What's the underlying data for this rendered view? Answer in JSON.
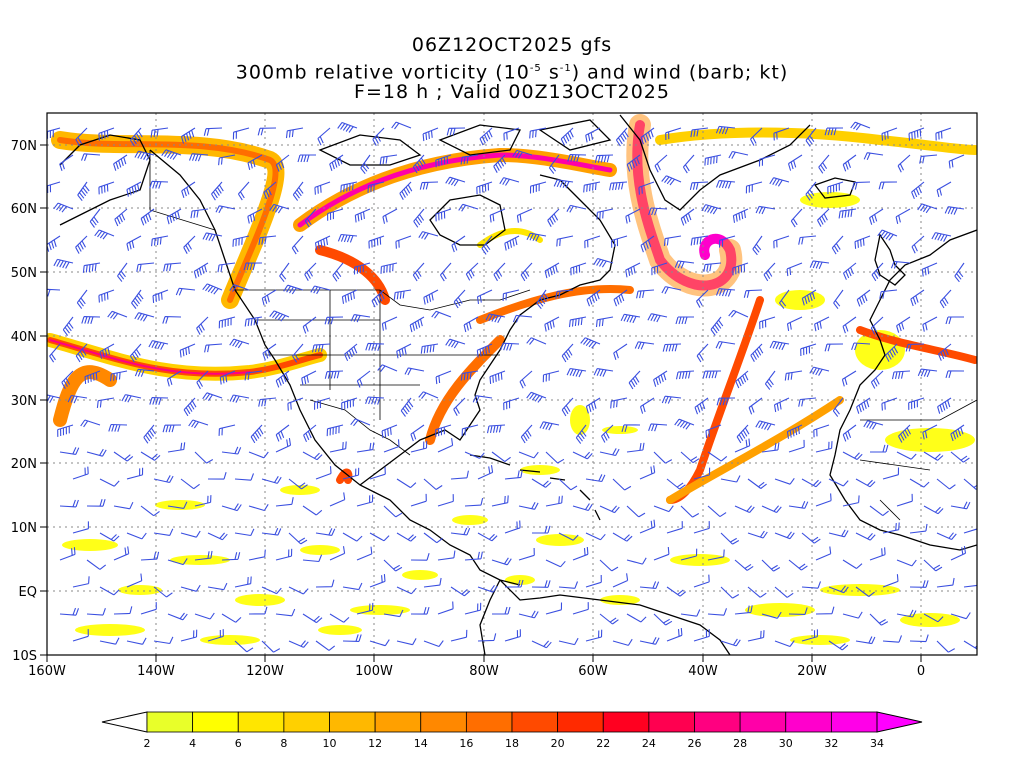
{
  "title": {
    "line1": "06Z12OCT2025 gfs",
    "line2_pre": "300mb relative vorticity (10",
    "line2_exp1": "-5",
    "line2_mid": " s",
    "line2_exp2": "-1",
    "line2_post": ") and wind (barb; kt)",
    "line3": "F=18 h ; Valid 00Z13OCT2025"
  },
  "map": {
    "lon_range": [
      -160,
      10
    ],
    "lat_range": [
      -10,
      75
    ],
    "lon_ticks": [
      "160W",
      "140W",
      "120W",
      "100W",
      "80W",
      "60W",
      "40W",
      "20W",
      "0"
    ],
    "lat_ticks": [
      "10S",
      "EQ",
      "10N",
      "20N",
      "30N",
      "40N",
      "50N",
      "60N",
      "70N"
    ],
    "gridlines": "dotted",
    "barb_color": "#3a4fe0",
    "coastline_color": "#000000"
  },
  "colorbar": {
    "labels": [
      "2",
      "4",
      "6",
      "8",
      "10",
      "12",
      "14",
      "16",
      "18",
      "20",
      "22",
      "24",
      "26",
      "28",
      "30",
      "32",
      "34"
    ],
    "colors": [
      "#e8ff2a",
      "#ffff00",
      "#ffe600",
      "#ffd000",
      "#ffb800",
      "#ffa000",
      "#ff8800",
      "#ff6e00",
      "#ff4a00",
      "#ff2a00",
      "#ff0020",
      "#ff0050",
      "#ff0080",
      "#ff00a8",
      "#ff00cc",
      "#ff00e8"
    ],
    "under_color": "#ffffff",
    "over_color": "#ff00ff"
  }
}
